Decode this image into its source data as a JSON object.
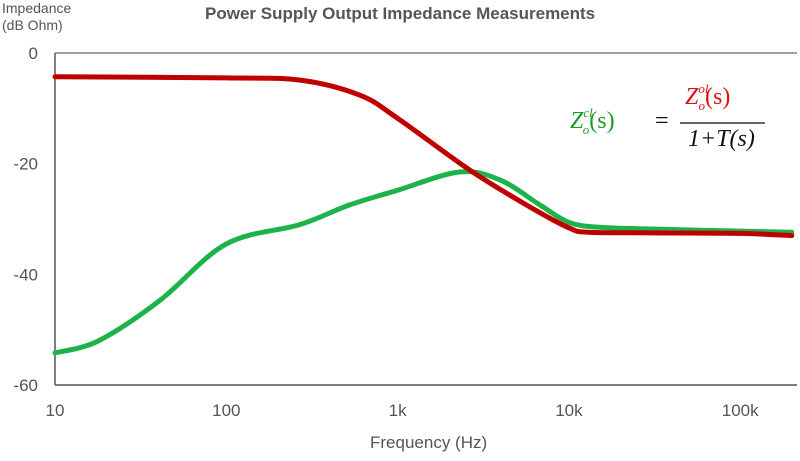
{
  "chart_data": {
    "type": "line",
    "title": "Power Supply Output Impedance Measurements",
    "xlabel": "Frequency (Hz)",
    "ylabel_line1": "Impedance",
    "ylabel_line2": "(dB Ohm)",
    "x_scale": "log",
    "xlim": [
      10,
      200000
    ],
    "ylim": [
      -60,
      0
    ],
    "grid": false,
    "x_ticks": [
      {
        "value": 10,
        "label": "10"
      },
      {
        "value": 100,
        "label": "100"
      },
      {
        "value": 1000,
        "label": "1k"
      },
      {
        "value": 10000,
        "label": "10k"
      },
      {
        "value": 100000,
        "label": "100k"
      }
    ],
    "y_ticks": [
      {
        "value": 0,
        "label": "0"
      },
      {
        "value": -20,
        "label": "-20"
      },
      {
        "value": -40,
        "label": "-40"
      },
      {
        "value": -60,
        "label": "-60"
      }
    ],
    "series": [
      {
        "id": "closed_loop",
        "color": "#1db34a",
        "x": [
          10,
          18,
          41,
          100,
          270,
          520,
          1000,
          2300,
          4000,
          6800,
          10000,
          15000,
          30000,
          100000,
          200000
        ],
        "y": [
          -54.2,
          -52,
          -44.7,
          -34.5,
          -31,
          -27.5,
          -24.8,
          -21.5,
          -23,
          -27.5,
          -30.6,
          -31.5,
          -31.8,
          -32.2,
          -32.4
        ]
      },
      {
        "id": "open_loop",
        "color": "#c00000",
        "x": [
          10,
          100,
          270,
          600,
          1000,
          2650,
          5900,
          10000,
          13000,
          30000,
          100000,
          200000
        ],
        "y": [
          -4.3,
          -4.5,
          -4.9,
          -7.6,
          -11.8,
          -21.2,
          -27.8,
          -31.6,
          -32.4,
          -32.5,
          -32.6,
          -33
        ]
      }
    ],
    "annotation": {
      "lhs_symbol": "Z",
      "lhs_sup": "cl",
      "lhs_sub": "o",
      "lhs_arg": "(s)",
      "equals": "=",
      "num_symbol": "Z",
      "num_sup": "ol",
      "num_sub": "o",
      "num_arg": "(s)",
      "denominator": "1+T(s)",
      "lhs_color": "#1f9a2a",
      "num_color": "#e01010"
    }
  }
}
